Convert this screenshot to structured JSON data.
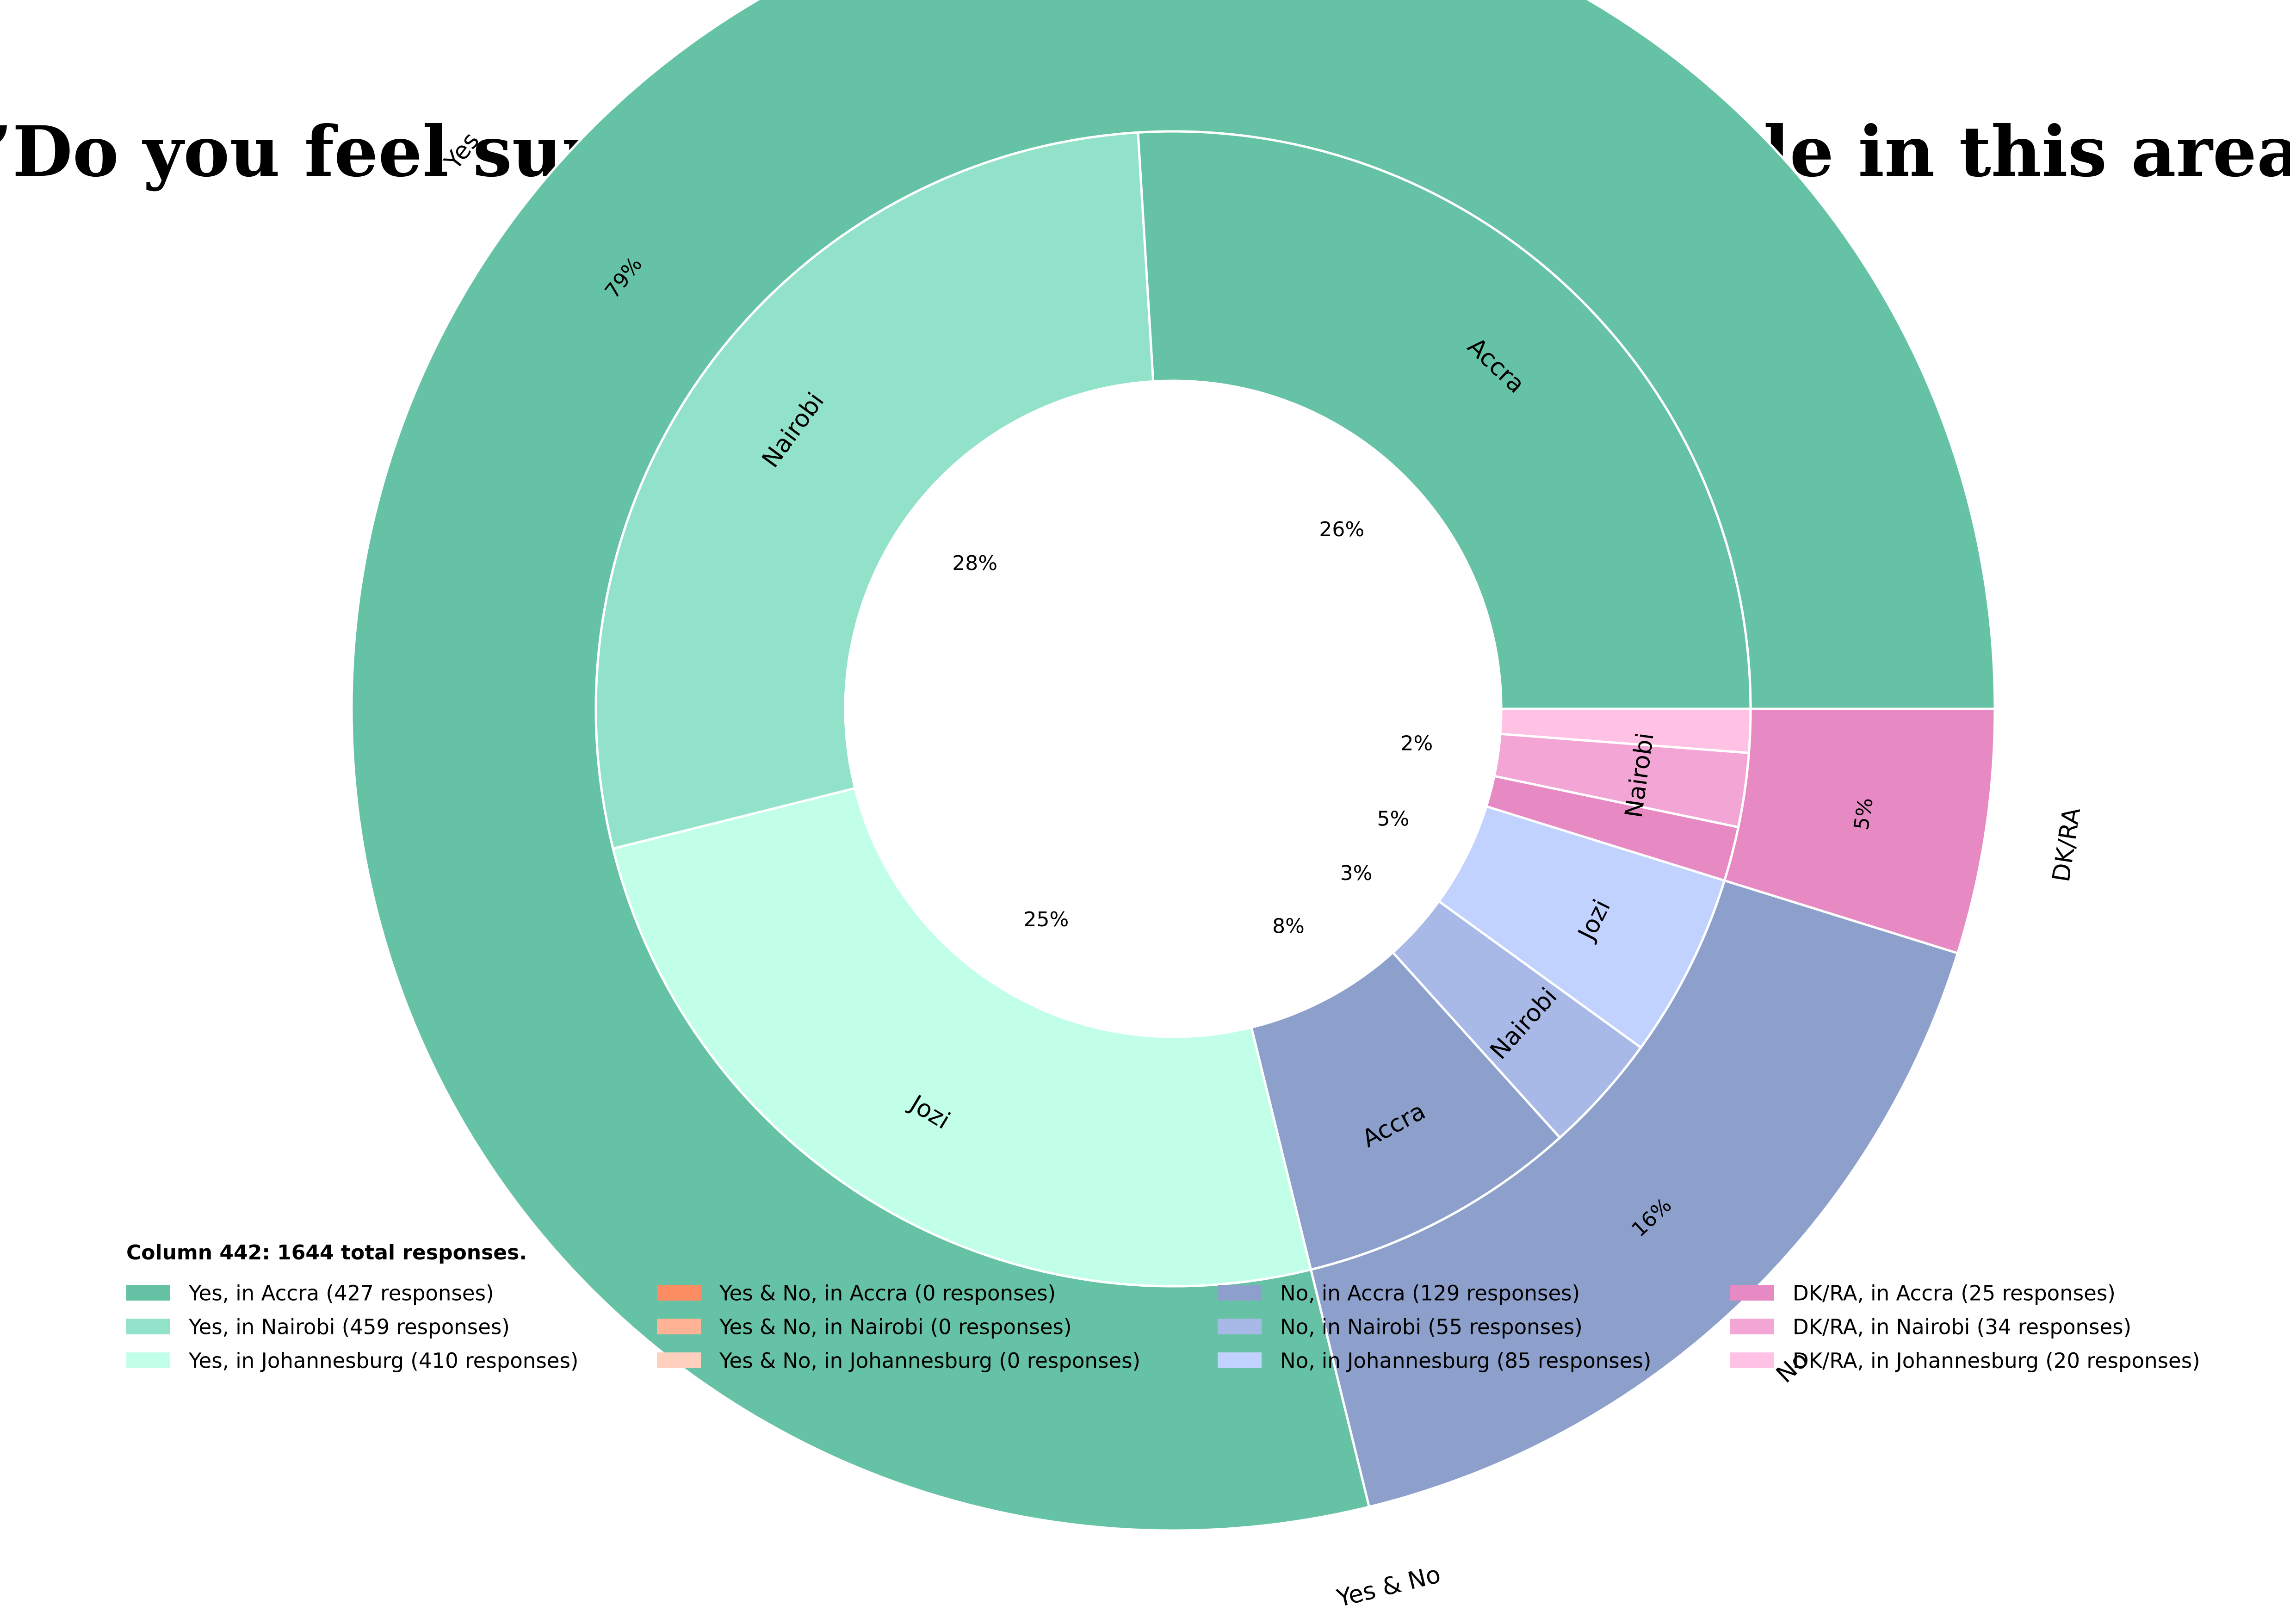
{
  "chart_data": {
    "type": "pie",
    "title": "”Do you feel supported and respected by people in this area?”",
    "legend_title": "Column 442: 1644 total responses.",
    "outer": [
      {
        "label": "Yes",
        "value": 1296,
        "pct_label": "79%",
        "color": "#66c2a5"
      },
      {
        "label": "Yes & No",
        "value": 0,
        "pct_label": "",
        "color": "#fc8d62"
      },
      {
        "label": "No",
        "value": 269,
        "pct_label": "16%",
        "color": "#8da0cb"
      },
      {
        "label": "DK/RA",
        "value": 79,
        "pct_label": "5%",
        "color": "#e78ac3"
      }
    ],
    "inner": [
      {
        "label": "Accra",
        "value": 427,
        "pct_label": "26%",
        "color": "#66c2a5"
      },
      {
        "label": "Nairobi",
        "value": 459,
        "pct_label": "28%",
        "color": "#91e2c8"
      },
      {
        "label": "Jozi",
        "value": 410,
        "pct_label": "25%",
        "color": "#c1ffe8"
      },
      {
        "label": "",
        "value": 0,
        "pct_label": "",
        "color": "#fc8d62"
      },
      {
        "label": "",
        "value": 0,
        "pct_label": "",
        "color": "#ffb394"
      },
      {
        "label": "",
        "value": 0,
        "pct_label": "",
        "color": "#ffd0bd"
      },
      {
        "label": "Accra",
        "value": 129,
        "pct_label": "8%",
        "color": "#8da0cb"
      },
      {
        "label": "Nairobi",
        "value": 55,
        "pct_label": "3%",
        "color": "#a9b9e7"
      },
      {
        "label": "Jozi",
        "value": 85,
        "pct_label": "5%",
        "color": "#c2d2ff"
      },
      {
        "label": "",
        "value": 25,
        "pct_label": "",
        "color": "#e78ac3"
      },
      {
        "label": "Nairobi",
        "value": 34,
        "pct_label": "2%",
        "color": "#f3a6d6"
      },
      {
        "label": "",
        "value": 20,
        "pct_label": "",
        "color": "#ffc2e5"
      }
    ],
    "legend": [
      {
        "text": "Yes, in Accra (427 responses)",
        "color": "#66c2a5"
      },
      {
        "text": "Yes, in Nairobi (459 responses)",
        "color": "#91e2c8"
      },
      {
        "text": "Yes, in Johannesburg (410 responses)",
        "color": "#c1ffe8"
      },
      {
        "text": "Yes & No, in Accra (0 responses)",
        "color": "#fc8d62"
      },
      {
        "text": "Yes & No, in Nairobi (0 responses)",
        "color": "#ffb394"
      },
      {
        "text": "Yes & No, in Johannesburg (0 responses)",
        "color": "#ffd0bd"
      },
      {
        "text": "No, in Accra (129 responses)",
        "color": "#8da0cb"
      },
      {
        "text": "No, in Nairobi (55 responses)",
        "color": "#a9b9e7"
      },
      {
        "text": "No, in Johannesburg (85 responses)",
        "color": "#c2d2ff"
      },
      {
        "text": "DK/RA, in Accra (25 responses)",
        "color": "#e78ac3"
      },
      {
        "text": "DK/RA, in Nairobi (34 responses)",
        "color": "#f3a6d6"
      },
      {
        "text": "DK/RA, in Johannesburg (20 responses)",
        "color": "#ffc2e5"
      }
    ]
  }
}
